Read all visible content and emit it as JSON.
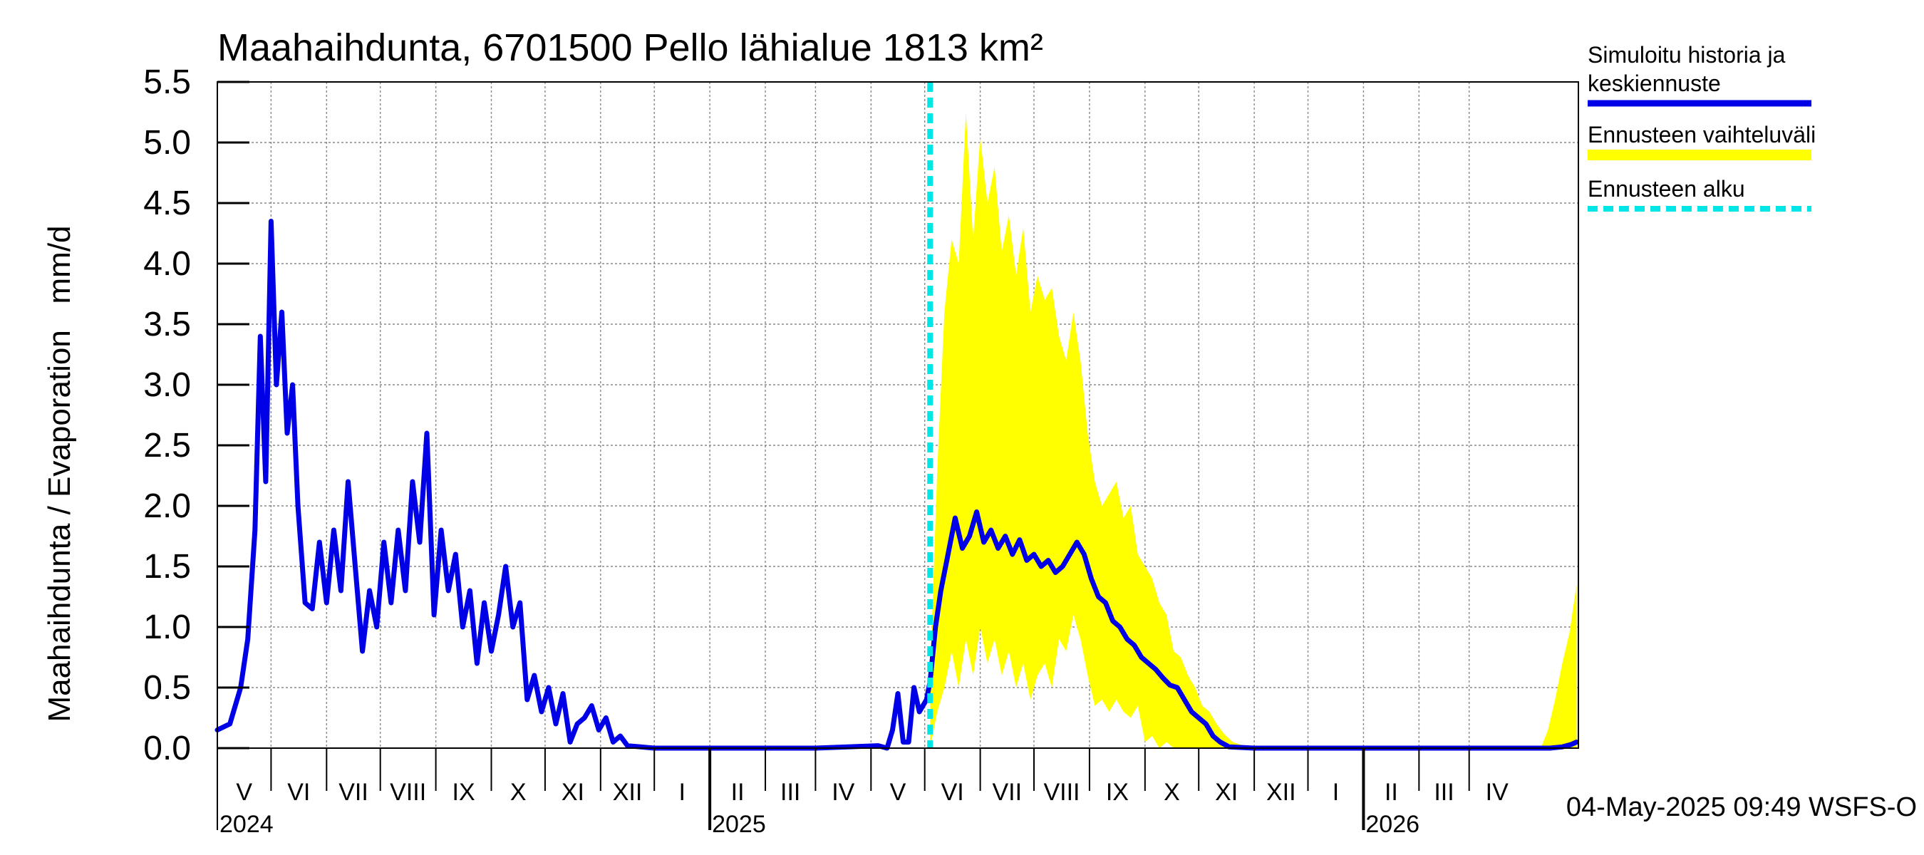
{
  "chart_data": {
    "type": "area",
    "title": "Maahaihdunta, 6701500 Pello lähialue 1813 km²",
    "ylabel": "Maahaihdunta / Evaporation   mm/d",
    "xlabel": "",
    "ylim": [
      0,
      5.5
    ],
    "y_ticks": [
      "0.0",
      "0.5",
      "1.0",
      "1.5",
      "2.0",
      "2.5",
      "3.0",
      "3.5",
      "4.0",
      "4.5",
      "5.0",
      "5.5"
    ],
    "x_range": [
      "2024-04-01",
      "2026-04-30"
    ],
    "month_labels": [
      "V",
      "VI",
      "VII",
      "VIII",
      "IX",
      "X",
      "XI",
      "XII",
      "I",
      "II",
      "III",
      "IV",
      "V",
      "VI",
      "VII",
      "VIII",
      "IX",
      "X",
      "XI",
      "XII",
      "I",
      "II",
      "III",
      "IV"
    ],
    "year_labels": [
      {
        "date": "2024-04-01",
        "label": "2024"
      },
      {
        "date": "2025-01-01",
        "label": "2025"
      },
      {
        "date": "2026-01-01",
        "label": "2026"
      }
    ],
    "grid": true,
    "legend_position": "right",
    "forecast_start": "2025-05-04",
    "timestamp": "04-May-2025 09:49 WSFS-O",
    "legend": [
      {
        "label": "Simuloitu historia ja keskiennuste",
        "style": "line",
        "color": "#0000e6"
      },
      {
        "label": "Ennusteen vaihteluväli",
        "style": "band",
        "color": "#ffff00"
      },
      {
        "label": "Ennusteen alku",
        "style": "dashed",
        "color": "#00e5e5"
      }
    ],
    "series": [
      {
        "name": "Simuloitu historia ja keskiennuste",
        "color": "#0000e6",
        "points": [
          [
            "2024-04-01",
            0.15
          ],
          [
            "2024-04-08",
            0.2
          ],
          [
            "2024-04-14",
            0.5
          ],
          [
            "2024-04-18",
            0.9
          ],
          [
            "2024-04-22",
            1.8
          ],
          [
            "2024-04-25",
            3.4
          ],
          [
            "2024-04-28",
            2.2
          ],
          [
            "2024-05-01",
            4.35
          ],
          [
            "2024-05-04",
            3.0
          ],
          [
            "2024-05-07",
            3.6
          ],
          [
            "2024-05-10",
            2.6
          ],
          [
            "2024-05-13",
            3.0
          ],
          [
            "2024-05-16",
            2.0
          ],
          [
            "2024-05-20",
            1.2
          ],
          [
            "2024-05-24",
            1.15
          ],
          [
            "2024-05-28",
            1.7
          ],
          [
            "2024-06-01",
            1.2
          ],
          [
            "2024-06-05",
            1.8
          ],
          [
            "2024-06-09",
            1.3
          ],
          [
            "2024-06-13",
            2.2
          ],
          [
            "2024-06-17",
            1.5
          ],
          [
            "2024-06-21",
            0.8
          ],
          [
            "2024-06-25",
            1.3
          ],
          [
            "2024-06-29",
            1.0
          ],
          [
            "2024-07-03",
            1.7
          ],
          [
            "2024-07-07",
            1.2
          ],
          [
            "2024-07-11",
            1.8
          ],
          [
            "2024-07-15",
            1.3
          ],
          [
            "2024-07-19",
            2.2
          ],
          [
            "2024-07-23",
            1.7
          ],
          [
            "2024-07-27",
            2.6
          ],
          [
            "2024-07-31",
            1.1
          ],
          [
            "2024-08-04",
            1.8
          ],
          [
            "2024-08-08",
            1.3
          ],
          [
            "2024-08-12",
            1.6
          ],
          [
            "2024-08-16",
            1.0
          ],
          [
            "2024-08-20",
            1.3
          ],
          [
            "2024-08-24",
            0.7
          ],
          [
            "2024-08-28",
            1.2
          ],
          [
            "2024-09-01",
            0.8
          ],
          [
            "2024-09-05",
            1.1
          ],
          [
            "2024-09-09",
            1.5
          ],
          [
            "2024-09-13",
            1.0
          ],
          [
            "2024-09-17",
            1.2
          ],
          [
            "2024-09-21",
            0.4
          ],
          [
            "2024-09-25",
            0.6
          ],
          [
            "2024-09-29",
            0.3
          ],
          [
            "2024-10-03",
            0.5
          ],
          [
            "2024-10-07",
            0.2
          ],
          [
            "2024-10-11",
            0.45
          ],
          [
            "2024-10-15",
            0.05
          ],
          [
            "2024-10-19",
            0.2
          ],
          [
            "2024-10-23",
            0.25
          ],
          [
            "2024-10-27",
            0.35
          ],
          [
            "2024-10-31",
            0.15
          ],
          [
            "2024-11-04",
            0.25
          ],
          [
            "2024-11-08",
            0.05
          ],
          [
            "2024-11-12",
            0.1
          ],
          [
            "2024-11-16",
            0.02
          ],
          [
            "2024-12-01",
            0.0
          ],
          [
            "2025-01-15",
            0.0
          ],
          [
            "2025-03-01",
            0.0
          ],
          [
            "2025-04-05",
            0.02
          ],
          [
            "2025-04-10",
            0.0
          ],
          [
            "2025-04-13",
            0.15
          ],
          [
            "2025-04-16",
            0.45
          ],
          [
            "2025-04-19",
            0.05
          ],
          [
            "2025-04-22",
            0.05
          ],
          [
            "2025-04-25",
            0.5
          ],
          [
            "2025-04-28",
            0.3
          ],
          [
            "2025-05-02",
            0.4
          ],
          [
            "2025-05-04",
            0.55
          ],
          [
            "2025-05-07",
            1.0
          ],
          [
            "2025-05-10",
            1.3
          ],
          [
            "2025-05-14",
            1.6
          ],
          [
            "2025-05-18",
            1.9
          ],
          [
            "2025-05-22",
            1.65
          ],
          [
            "2025-05-26",
            1.75
          ],
          [
            "2025-05-30",
            1.95
          ],
          [
            "2025-06-03",
            1.7
          ],
          [
            "2025-06-07",
            1.8
          ],
          [
            "2025-06-11",
            1.65
          ],
          [
            "2025-06-15",
            1.75
          ],
          [
            "2025-06-19",
            1.6
          ],
          [
            "2025-06-23",
            1.72
          ],
          [
            "2025-06-27",
            1.55
          ],
          [
            "2025-07-01",
            1.6
          ],
          [
            "2025-07-05",
            1.5
          ],
          [
            "2025-07-09",
            1.55
          ],
          [
            "2025-07-13",
            1.45
          ],
          [
            "2025-07-17",
            1.5
          ],
          [
            "2025-07-21",
            1.6
          ],
          [
            "2025-07-25",
            1.7
          ],
          [
            "2025-07-29",
            1.6
          ],
          [
            "2025-08-02",
            1.4
          ],
          [
            "2025-08-06",
            1.25
          ],
          [
            "2025-08-10",
            1.2
          ],
          [
            "2025-08-14",
            1.05
          ],
          [
            "2025-08-18",
            1.0
          ],
          [
            "2025-08-22",
            0.9
          ],
          [
            "2025-08-26",
            0.85
          ],
          [
            "2025-08-30",
            0.75
          ],
          [
            "2025-09-03",
            0.7
          ],
          [
            "2025-09-07",
            0.65
          ],
          [
            "2025-09-11",
            0.58
          ],
          [
            "2025-09-15",
            0.52
          ],
          [
            "2025-09-19",
            0.5
          ],
          [
            "2025-09-23",
            0.4
          ],
          [
            "2025-09-27",
            0.3
          ],
          [
            "2025-10-01",
            0.25
          ],
          [
            "2025-10-05",
            0.2
          ],
          [
            "2025-10-09",
            0.1
          ],
          [
            "2025-10-13",
            0.05
          ],
          [
            "2025-10-18",
            0.01
          ],
          [
            "2025-11-01",
            0.0
          ],
          [
            "2026-01-01",
            0.0
          ],
          [
            "2026-04-15",
            0.0
          ],
          [
            "2026-04-22",
            0.01
          ],
          [
            "2026-04-27",
            0.03
          ],
          [
            "2026-04-30",
            0.05
          ]
        ]
      },
      {
        "name": "Ennusteen vaihteluväli",
        "color": "#ffff00",
        "points": [
          [
            "2025-05-04",
            0.0,
            0.6
          ],
          [
            "2025-05-08",
            0.3,
            2.3
          ],
          [
            "2025-05-12",
            0.5,
            3.6
          ],
          [
            "2025-05-16",
            0.8,
            4.2
          ],
          [
            "2025-05-20",
            0.5,
            4.0
          ],
          [
            "2025-05-24",
            0.9,
            5.25
          ],
          [
            "2025-05-28",
            0.6,
            4.2
          ],
          [
            "2025-06-01",
            1.0,
            5.05
          ],
          [
            "2025-06-05",
            0.7,
            4.5
          ],
          [
            "2025-06-09",
            0.9,
            4.8
          ],
          [
            "2025-06-13",
            0.6,
            4.1
          ],
          [
            "2025-06-17",
            0.8,
            4.4
          ],
          [
            "2025-06-21",
            0.5,
            3.9
          ],
          [
            "2025-06-25",
            0.7,
            4.3
          ],
          [
            "2025-06-29",
            0.4,
            3.6
          ],
          [
            "2025-07-03",
            0.6,
            3.9
          ],
          [
            "2025-07-07",
            0.7,
            3.7
          ],
          [
            "2025-07-11",
            0.5,
            3.8
          ],
          [
            "2025-07-15",
            0.9,
            3.4
          ],
          [
            "2025-07-19",
            0.8,
            3.2
          ],
          [
            "2025-07-23",
            1.1,
            3.6
          ],
          [
            "2025-07-27",
            0.9,
            3.2
          ],
          [
            "2025-07-31",
            0.6,
            2.6
          ],
          [
            "2025-08-04",
            0.35,
            2.2
          ],
          [
            "2025-08-08",
            0.4,
            2.0
          ],
          [
            "2025-08-12",
            0.3,
            2.1
          ],
          [
            "2025-08-16",
            0.4,
            2.2
          ],
          [
            "2025-08-20",
            0.3,
            1.9
          ],
          [
            "2025-08-24",
            0.25,
            2.0
          ],
          [
            "2025-08-28",
            0.35,
            1.6
          ],
          [
            "2025-09-01",
            0.05,
            1.5
          ],
          [
            "2025-09-05",
            0.1,
            1.4
          ],
          [
            "2025-09-09",
            0.0,
            1.2
          ],
          [
            "2025-09-13",
            0.05,
            1.1
          ],
          [
            "2025-09-17",
            0.0,
            0.8
          ],
          [
            "2025-09-21",
            0.0,
            0.75
          ],
          [
            "2025-09-25",
            0.0,
            0.6
          ],
          [
            "2025-09-29",
            0.0,
            0.5
          ],
          [
            "2025-10-03",
            0.0,
            0.35
          ],
          [
            "2025-10-07",
            0.0,
            0.3
          ],
          [
            "2025-10-11",
            0.0,
            0.2
          ],
          [
            "2025-10-15",
            0.0,
            0.12
          ],
          [
            "2025-10-20",
            0.0,
            0.05
          ],
          [
            "2025-10-28",
            0.0,
            0.01
          ],
          [
            "2025-11-05",
            0.0,
            0.0
          ],
          [
            "2026-04-10",
            0.0,
            0.0
          ],
          [
            "2026-04-14",
            0.0,
            0.15
          ],
          [
            "2026-04-18",
            0.0,
            0.4
          ],
          [
            "2026-04-22",
            0.0,
            0.7
          ],
          [
            "2026-04-26",
            0.0,
            0.95
          ],
          [
            "2026-04-30",
            0.0,
            1.35
          ]
        ]
      }
    ]
  }
}
